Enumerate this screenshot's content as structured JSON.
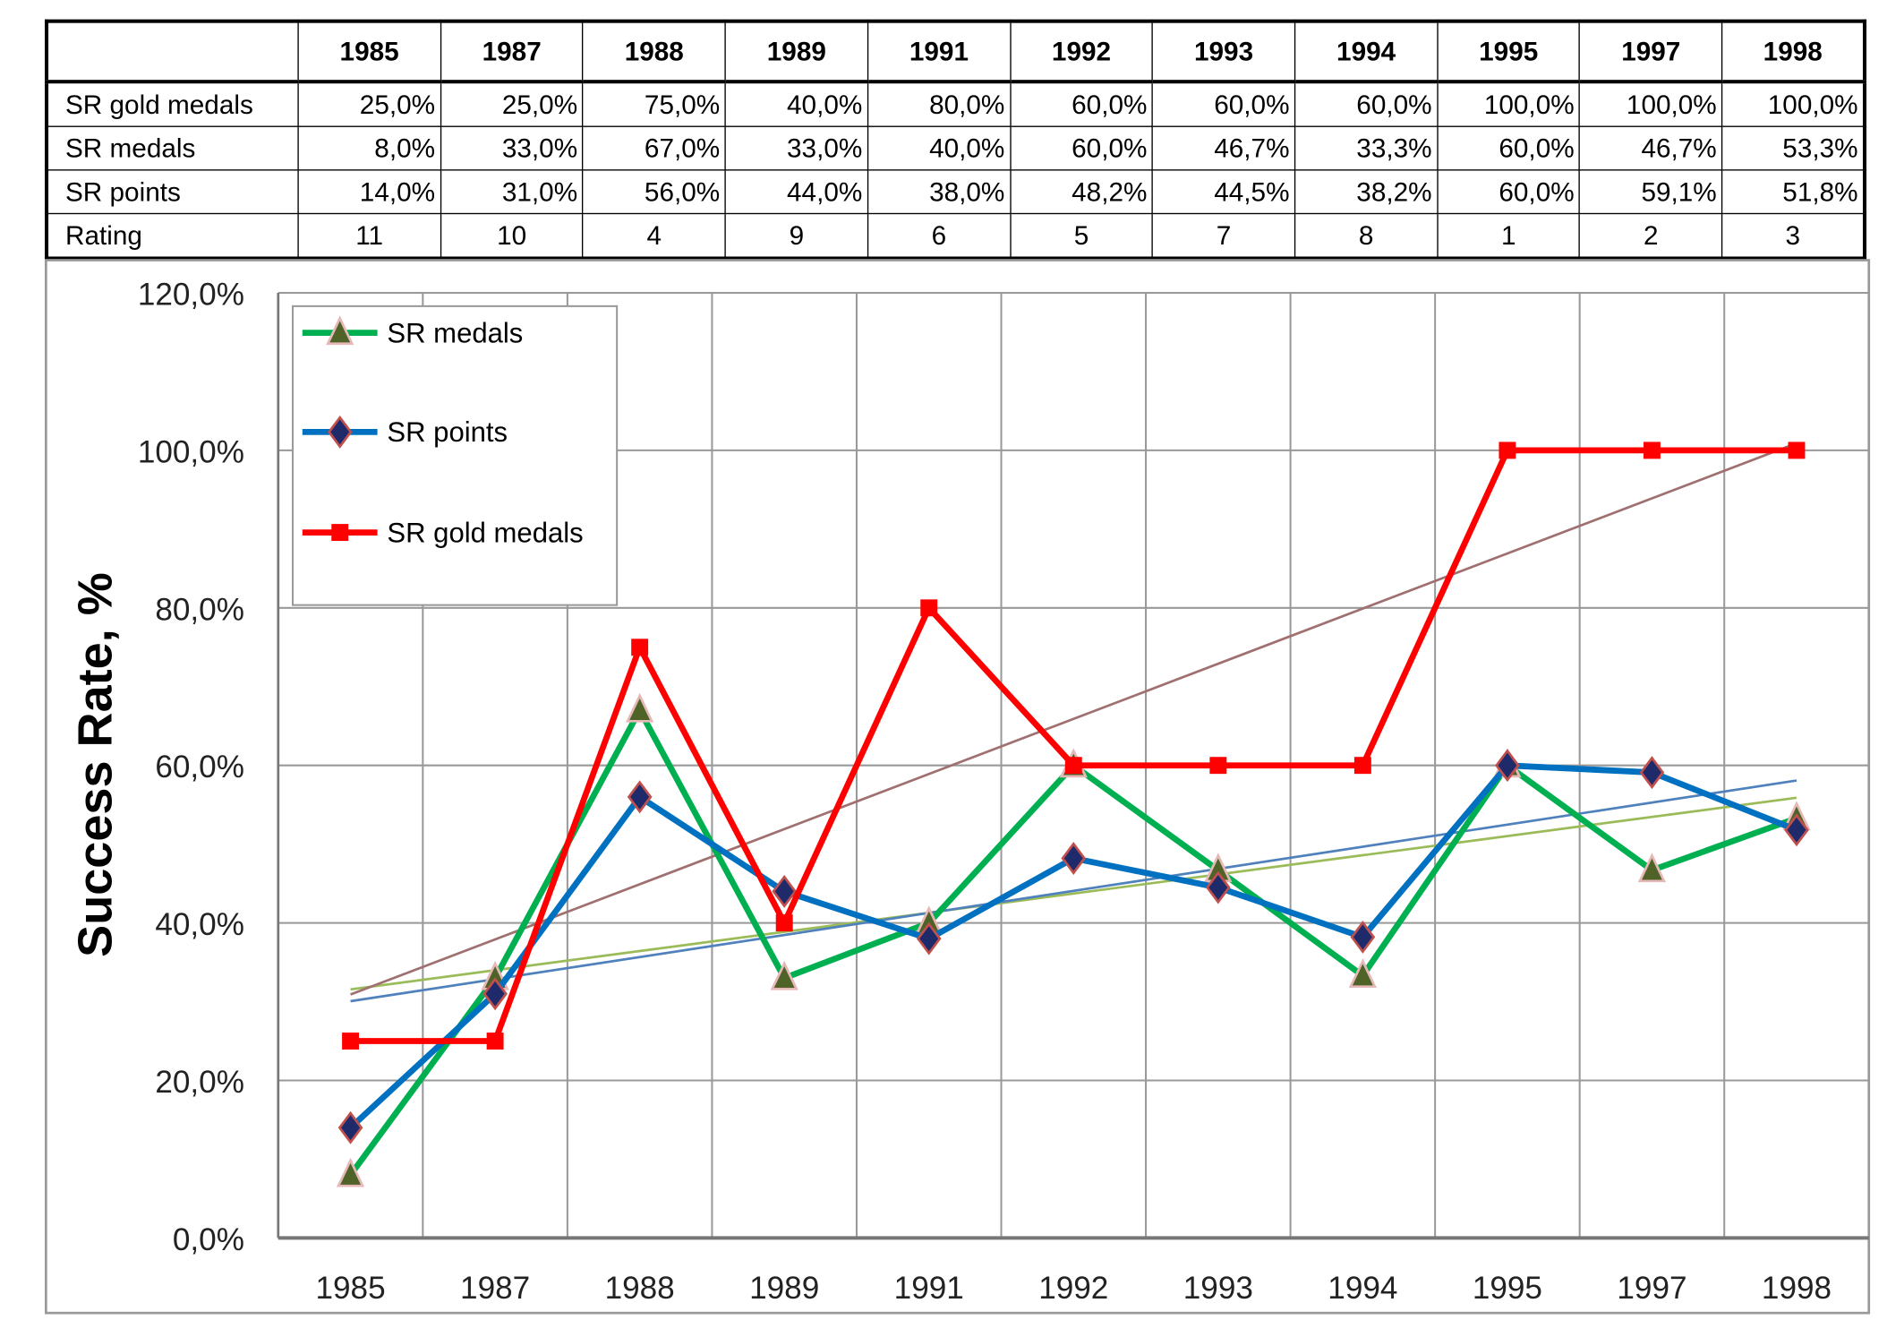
{
  "table": {
    "years": [
      "1985",
      "1987",
      "1988",
      "1989",
      "1991",
      "1992",
      "1993",
      "1994",
      "1995",
      "1997",
      "1998"
    ],
    "rows": [
      {
        "label": "SR gold medals",
        "cells": [
          "25,0%",
          "25,0%",
          "75,0%",
          "40,0%",
          "80,0%",
          "60,0%",
          "60,0%",
          "60,0%",
          "100,0%",
          "100,0%",
          "100,0%"
        ]
      },
      {
        "label": "SR medals",
        "cells": [
          "8,0%",
          "33,0%",
          "67,0%",
          "33,0%",
          "40,0%",
          "60,0%",
          "46,7%",
          "33,3%",
          "60,0%",
          "46,7%",
          "53,3%"
        ]
      },
      {
        "label": "SR points",
        "cells": [
          "14,0%",
          "31,0%",
          "56,0%",
          "44,0%",
          "38,0%",
          "48,2%",
          "44,5%",
          "38,2%",
          "60,0%",
          "59,1%",
          "51,8%"
        ]
      },
      {
        "label": "Rating",
        "cells": [
          "11",
          "10",
          "4",
          "9",
          "6",
          "5",
          "7",
          "8",
          "1",
          "2",
          "3"
        ]
      }
    ]
  },
  "chart_data": {
    "type": "line",
    "title": "",
    "xlabel": "",
    "ylabel": "Success Rate, %",
    "ylim": [
      0,
      120
    ],
    "yticks": [
      "0,0%",
      "20,0%",
      "40,0%",
      "60,0%",
      "80,0%",
      "100,0%",
      "120,0%"
    ],
    "categories": [
      "1985",
      "1987",
      "1988",
      "1989",
      "1991",
      "1992",
      "1993",
      "1994",
      "1995",
      "1997",
      "1998"
    ],
    "grid": true,
    "legend_position": "top-left",
    "trendlines": "linear, one per series",
    "series": [
      {
        "name": "SR medals",
        "color": "#00b050",
        "trend_color": "#9bbb59",
        "marker": "triangle",
        "values": [
          8,
          33,
          67,
          33,
          40,
          60,
          46.7,
          33.3,
          60,
          46.7,
          53.3
        ]
      },
      {
        "name": "SR points",
        "color": "#0070c0",
        "trend_color": "#4f81bd",
        "marker": "diamond",
        "values": [
          14,
          31,
          56,
          44,
          38,
          48.2,
          44.5,
          38.2,
          60,
          59.1,
          51.8
        ]
      },
      {
        "name": "SR gold medals",
        "color": "#ff0000",
        "trend_color": "#a07070",
        "marker": "square",
        "values": [
          25,
          25,
          75,
          40,
          80,
          60,
          60,
          60,
          100,
          100,
          100
        ]
      }
    ]
  }
}
